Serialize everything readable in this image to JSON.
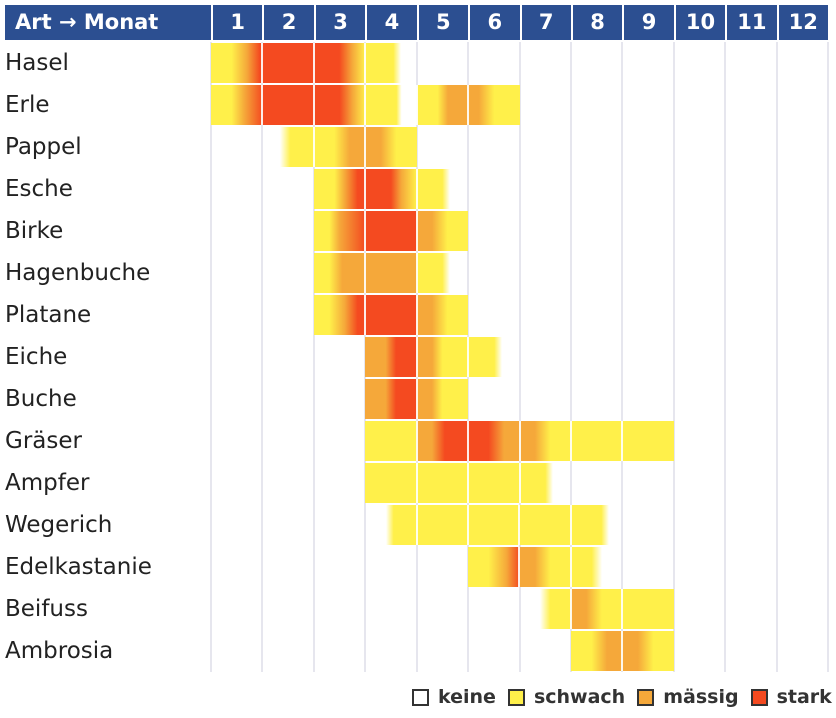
{
  "header": {
    "label": "Art → Monat",
    "months": [
      "1",
      "2",
      "3",
      "4",
      "5",
      "6",
      "7",
      "8",
      "9",
      "10",
      "11",
      "12"
    ]
  },
  "colors": {
    "header": "#2c4f91",
    "keine": "#ffffff",
    "schwach": "#fff04a",
    "maessig": "#f5a83a",
    "stark": "#f44a20"
  },
  "legend": [
    {
      "label": "keine",
      "level": 0
    },
    {
      "label": "schwach",
      "level": 1
    },
    {
      "label": "mässig",
      "level": 2
    },
    {
      "label": "stark",
      "level": 3
    }
  ],
  "chart_data": {
    "type": "heatmap",
    "xlabel": "Monat",
    "ylabel": "Art",
    "categories_x": [
      "1",
      "2",
      "3",
      "4",
      "5",
      "6",
      "7",
      "8",
      "9",
      "10",
      "11",
      "12"
    ],
    "levels": [
      "keine",
      "schwach",
      "mässig",
      "stark"
    ],
    "note_stops": "each row: [month position (0 = start of Jan, 12 = end of Dec), intensity level 0-3]",
    "rows": [
      {
        "name": "Hasel",
        "stops": [
          [
            0,
            1
          ],
          [
            0.4,
            1
          ],
          [
            0.7,
            2
          ],
          [
            0.95,
            3
          ],
          [
            2.5,
            3
          ],
          [
            2.75,
            2
          ],
          [
            3,
            1
          ],
          [
            3.55,
            1
          ],
          [
            3.7,
            0
          ]
        ]
      },
      {
        "name": "Erle",
        "stops": [
          [
            0,
            1
          ],
          [
            0.4,
            1
          ],
          [
            0.65,
            2
          ],
          [
            1,
            3
          ],
          [
            2.5,
            3
          ],
          [
            2.75,
            2
          ],
          [
            3,
            1
          ],
          [
            3.6,
            1
          ],
          [
            3.7,
            0
          ],
          [
            4,
            0
          ],
          [
            4,
            1
          ],
          [
            4.4,
            1
          ],
          [
            4.6,
            2
          ],
          [
            5.2,
            2
          ],
          [
            5.5,
            1
          ],
          [
            6,
            1
          ]
        ]
      },
      {
        "name": "Pappel",
        "stops": [
          [
            1.35,
            0
          ],
          [
            1.55,
            1
          ],
          [
            2.4,
            1
          ],
          [
            2.7,
            2
          ],
          [
            3.3,
            2
          ],
          [
            3.6,
            1
          ],
          [
            4,
            1
          ]
        ]
      },
      {
        "name": "Esche",
        "stops": [
          [
            2,
            1
          ],
          [
            2.4,
            1
          ],
          [
            2.6,
            2
          ],
          [
            2.85,
            3
          ],
          [
            3.5,
            3
          ],
          [
            3.7,
            2
          ],
          [
            4,
            1
          ],
          [
            4.5,
            1
          ],
          [
            4.65,
            0
          ]
        ]
      },
      {
        "name": "Birke",
        "stops": [
          [
            2,
            1
          ],
          [
            2.3,
            1
          ],
          [
            2.5,
            2
          ],
          [
            3,
            3
          ],
          [
            4,
            3
          ],
          [
            4,
            2
          ],
          [
            4.3,
            2
          ],
          [
            4.6,
            1
          ],
          [
            5,
            1
          ]
        ]
      },
      {
        "name": "Hagenbuche",
        "stops": [
          [
            2,
            1
          ],
          [
            2.3,
            1
          ],
          [
            2.55,
            2
          ],
          [
            4,
            2
          ],
          [
            4,
            1
          ],
          [
            4.5,
            1
          ],
          [
            4.65,
            0
          ]
        ]
      },
      {
        "name": "Platane",
        "stops": [
          [
            2,
            1
          ],
          [
            2.3,
            1
          ],
          [
            2.6,
            2
          ],
          [
            2.85,
            3
          ],
          [
            4,
            3
          ],
          [
            4,
            2
          ],
          [
            4.3,
            2
          ],
          [
            4.6,
            1
          ],
          [
            5,
            1
          ]
        ]
      },
      {
        "name": "Eiche",
        "stops": [
          [
            3,
            2
          ],
          [
            3.4,
            2
          ],
          [
            3.6,
            3
          ],
          [
            4,
            3
          ],
          [
            4,
            2
          ],
          [
            4.3,
            2
          ],
          [
            4.5,
            1
          ],
          [
            5.5,
            1
          ],
          [
            5.65,
            0
          ]
        ]
      },
      {
        "name": "Buche",
        "stops": [
          [
            3,
            2
          ],
          [
            3.4,
            2
          ],
          [
            3.6,
            3
          ],
          [
            4,
            3
          ],
          [
            4,
            2
          ],
          [
            4.3,
            2
          ],
          [
            4.5,
            1
          ],
          [
            5,
            1
          ]
        ]
      },
      {
        "name": "Gräser",
        "stops": [
          [
            3,
            1
          ],
          [
            4,
            1
          ],
          [
            4,
            2
          ],
          [
            4.3,
            2
          ],
          [
            4.55,
            3
          ],
          [
            5.4,
            3
          ],
          [
            5.7,
            2
          ],
          [
            6.3,
            2
          ],
          [
            6.6,
            1
          ],
          [
            9,
            1
          ]
        ]
      },
      {
        "name": "Ampfer",
        "stops": [
          [
            3,
            1
          ],
          [
            6.5,
            1
          ],
          [
            6.65,
            0
          ]
        ]
      },
      {
        "name": "Wegerich",
        "stops": [
          [
            3.4,
            0
          ],
          [
            3.55,
            1
          ],
          [
            7.6,
            1
          ],
          [
            7.75,
            0
          ]
        ]
      },
      {
        "name": "Edelkastanie",
        "stops": [
          [
            5,
            1
          ],
          [
            5.4,
            1
          ],
          [
            5.75,
            2
          ],
          [
            6,
            3
          ],
          [
            6,
            2
          ],
          [
            6.3,
            2
          ],
          [
            6.6,
            1
          ],
          [
            7.4,
            1
          ],
          [
            7.6,
            0
          ]
        ]
      },
      {
        "name": "Beifuss",
        "stops": [
          [
            6.4,
            0
          ],
          [
            6.6,
            1
          ],
          [
            7,
            1
          ],
          [
            7,
            2
          ],
          [
            7.3,
            2
          ],
          [
            7.6,
            1
          ],
          [
            9,
            1
          ]
        ]
      },
      {
        "name": "Ambrosia",
        "stops": [
          [
            7,
            1
          ],
          [
            7.4,
            1
          ],
          [
            7.7,
            2
          ],
          [
            8.3,
            2
          ],
          [
            8.6,
            1
          ],
          [
            9,
            1
          ]
        ]
      }
    ]
  }
}
